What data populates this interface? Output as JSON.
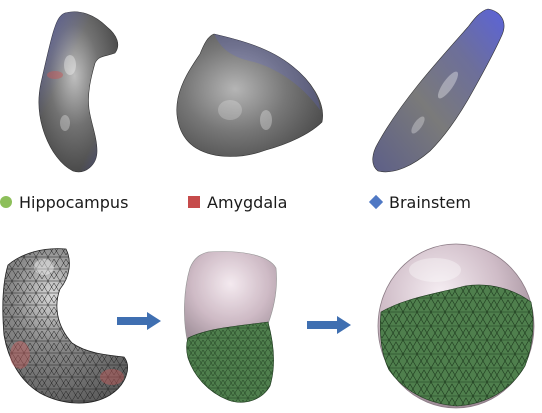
{
  "legend": [
    {
      "label": "Hippocampus",
      "marker": "circle",
      "color": "#8dbf5a"
    },
    {
      "label": "Amygdala",
      "marker": "square",
      "color": "#c64b4b"
    },
    {
      "label": "Brainstem",
      "marker": "diamond",
      "color": "#4f78c4"
    }
  ],
  "colors": {
    "surface_gray": "#7a7a7a",
    "surface_blue": "#5b63d9",
    "surface_red": "#c65a5a",
    "mesh_green": "#4f7f4d",
    "sphere_tint": "#d9c5d3",
    "arrow": "#3f6fb1"
  }
}
